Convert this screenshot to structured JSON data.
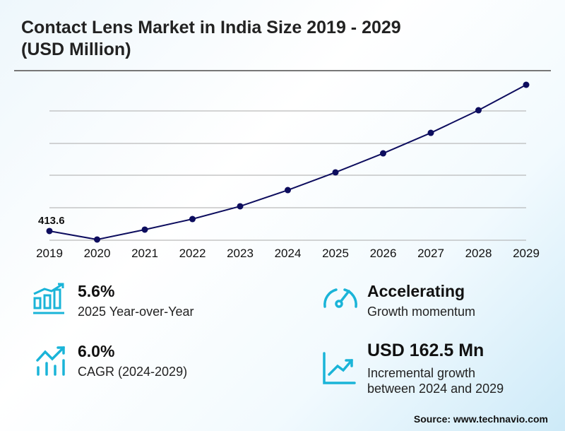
{
  "title_line1": "Contact Lens Market in India Size 2019 - 2029",
  "title_line2": "(USD Million)",
  "chart_data": {
    "type": "line",
    "title": "Contact Lens Market in India Size 2019 - 2029 (USD Million)",
    "categories": [
      "2019",
      "2020",
      "2021",
      "2022",
      "2023",
      "2024",
      "2025",
      "2026",
      "2027",
      "2028",
      "2029"
    ],
    "values": [
      413.6,
      400.5,
      415.8,
      432.1,
      451.8,
      476.8,
      504.1,
      533.5,
      565.1,
      600.0,
      639.3
    ],
    "data_labels": {
      "2019": "413.6"
    },
    "ylim": [
      399.4,
      639.3
    ],
    "grid": true,
    "line_color": "#0d0d5e"
  },
  "stats": {
    "yoy": {
      "value": "5.6%",
      "label": "2025 Year-over-Year",
      "icon": "bar-chart-growth-icon"
    },
    "momentum": {
      "value": "Accelerating",
      "label": "Growth momentum",
      "icon": "speedometer-icon"
    },
    "cagr": {
      "value": "6.0%",
      "label": "CAGR (2024-2029)",
      "icon": "trend-up-icon"
    },
    "incremental": {
      "value": "USD 162.5 Mn",
      "label1": "Incremental growth",
      "label2": "between 2024 and 2029",
      "icon": "line-chart-icon"
    }
  },
  "accent_color": "#1ab4d8",
  "source": "Source: www.technavio.com"
}
